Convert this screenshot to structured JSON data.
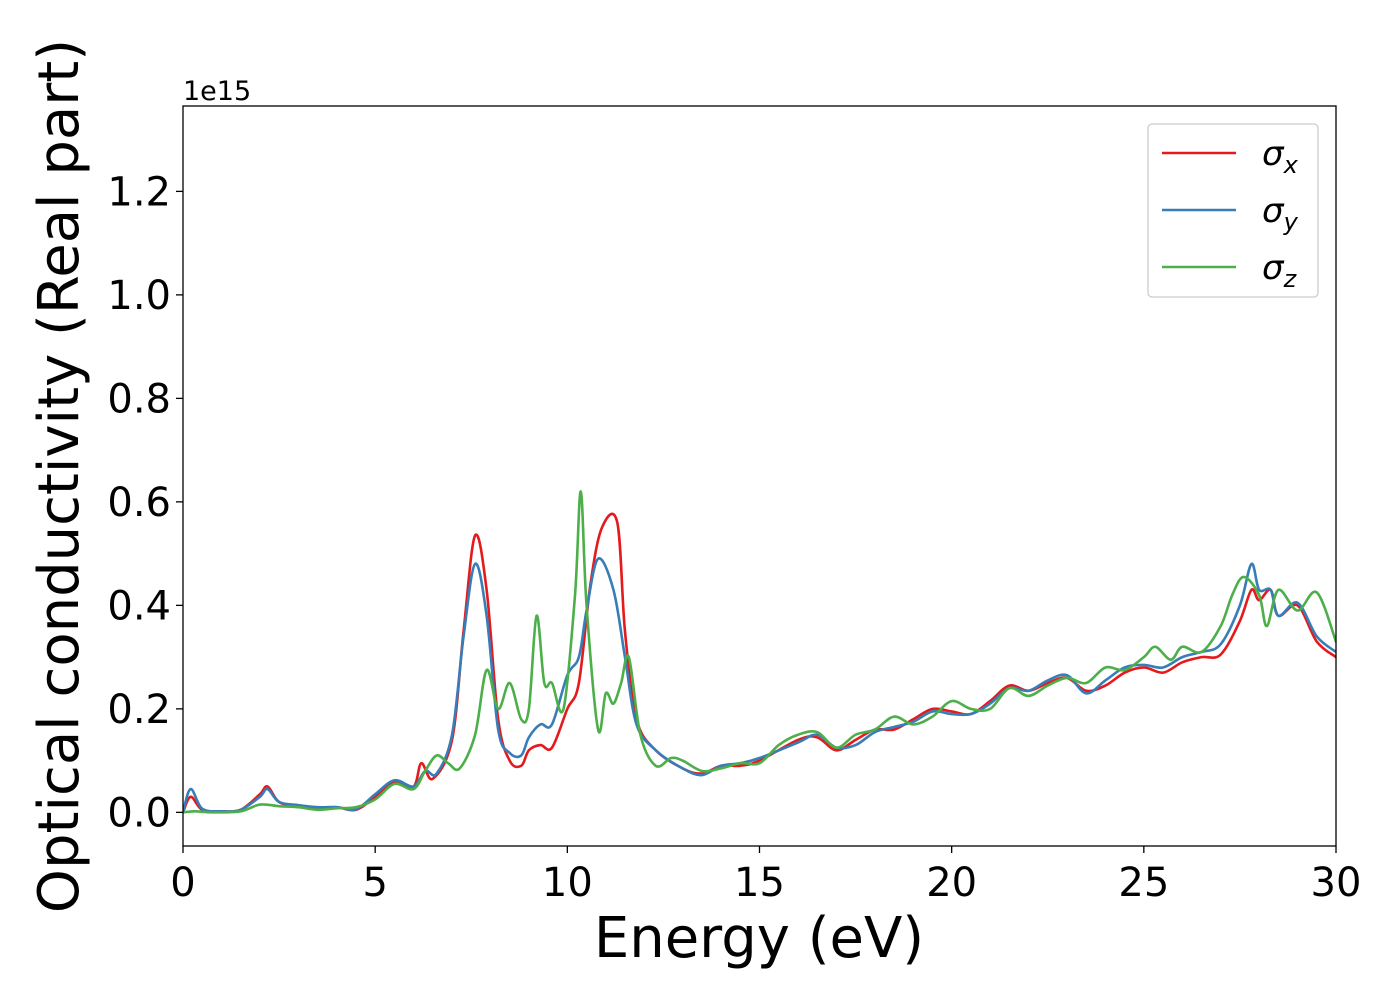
{
  "chart_data": {
    "type": "line",
    "title": "",
    "xlabel": "Energy (eV)",
    "ylabel": "Optical conductivity (Real part)",
    "y_offset_label": "1e15",
    "xlim": [
      0,
      30
    ],
    "ylim": [
      -0.065,
      1.365
    ],
    "xticks": [
      0,
      5,
      10,
      15,
      20,
      25,
      30
    ],
    "xtick_labels": [
      "0",
      "5",
      "10",
      "15",
      "20",
      "25",
      "30"
    ],
    "yticks": [
      0.0,
      0.2,
      0.4,
      0.6,
      0.8,
      1.0,
      1.2
    ],
    "ytick_labels": [
      "0.0",
      "0.2",
      "0.4",
      "0.6",
      "0.8",
      "1.0",
      "1.2"
    ],
    "grid": false,
    "legend_position": "top-right",
    "series": [
      {
        "name": "σx",
        "symbol": "σ",
        "subscript": "x",
        "color": "#e41a1c",
        "x": [
          0,
          0.2,
          0.5,
          1,
          1.5,
          2,
          2.2,
          2.5,
          3,
          3.5,
          4,
          4.5,
          5,
          5.5,
          6,
          6.2,
          6.5,
          7,
          7.3,
          7.6,
          7.9,
          8.2,
          8.5,
          8.8,
          9,
          9.3,
          9.6,
          10,
          10.3,
          10.6,
          10.9,
          11.3,
          11.5,
          11.8,
          12.3,
          13,
          13.5,
          14,
          14.5,
          15,
          16,
          16.5,
          17,
          17.5,
          18,
          18.5,
          19,
          19.5,
          20,
          20.5,
          21,
          21.5,
          22,
          22.5,
          23,
          23.5,
          24,
          24.5,
          25,
          25.5,
          26,
          26.5,
          27,
          27.5,
          27.8,
          28,
          28.3,
          28.5,
          29,
          29.5,
          30
        ],
        "values": [
          0.0,
          0.03,
          0.005,
          0.002,
          0.005,
          0.035,
          0.05,
          0.02,
          0.012,
          0.008,
          0.01,
          0.005,
          0.03,
          0.06,
          0.05,
          0.095,
          0.065,
          0.14,
          0.35,
          0.535,
          0.43,
          0.18,
          0.1,
          0.09,
          0.12,
          0.13,
          0.125,
          0.2,
          0.25,
          0.44,
          0.55,
          0.56,
          0.35,
          0.18,
          0.12,
          0.085,
          0.075,
          0.09,
          0.09,
          0.1,
          0.14,
          0.145,
          0.12,
          0.14,
          0.16,
          0.16,
          0.18,
          0.2,
          0.195,
          0.19,
          0.215,
          0.245,
          0.235,
          0.25,
          0.26,
          0.235,
          0.245,
          0.27,
          0.28,
          0.27,
          0.29,
          0.3,
          0.305,
          0.37,
          0.43,
          0.41,
          0.43,
          0.38,
          0.4,
          0.33,
          0.3
        ]
      },
      {
        "name": "σy",
        "symbol": "σ",
        "subscript": "y",
        "color": "#377eb8",
        "x": [
          0,
          0.2,
          0.5,
          1,
          1.5,
          2,
          2.2,
          2.5,
          3,
          3.5,
          4,
          4.5,
          5,
          5.5,
          6,
          6.3,
          6.6,
          7,
          7.3,
          7.6,
          7.9,
          8.2,
          8.5,
          8.8,
          9,
          9.3,
          9.6,
          10,
          10.3,
          10.5,
          10.8,
          11.2,
          11.5,
          11.8,
          12.3,
          13,
          13.5,
          14,
          14.5,
          15,
          16,
          16.5,
          17,
          17.5,
          18,
          18.5,
          19,
          19.5,
          20,
          20.5,
          21,
          21.5,
          22,
          22.5,
          23,
          23.5,
          24,
          24.5,
          25,
          25.5,
          26,
          26.5,
          27,
          27.5,
          27.8,
          28,
          28.3,
          28.5,
          29,
          29.5,
          30
        ],
        "values": [
          0.0,
          0.045,
          0.007,
          0.002,
          0.005,
          0.03,
          0.045,
          0.02,
          0.014,
          0.01,
          0.01,
          0.006,
          0.035,
          0.062,
          0.05,
          0.08,
          0.075,
          0.15,
          0.34,
          0.48,
          0.38,
          0.16,
          0.115,
          0.11,
          0.145,
          0.17,
          0.17,
          0.265,
          0.3,
          0.39,
          0.49,
          0.43,
          0.3,
          0.17,
          0.12,
          0.085,
          0.072,
          0.09,
          0.095,
          0.105,
          0.135,
          0.15,
          0.125,
          0.13,
          0.155,
          0.165,
          0.175,
          0.195,
          0.19,
          0.19,
          0.21,
          0.24,
          0.235,
          0.255,
          0.265,
          0.23,
          0.255,
          0.28,
          0.285,
          0.28,
          0.3,
          0.31,
          0.325,
          0.4,
          0.48,
          0.43,
          0.43,
          0.38,
          0.405,
          0.34,
          0.31
        ]
      },
      {
        "name": "σz",
        "symbol": "σ",
        "subscript": "z",
        "color": "#4daf4a",
        "x": [
          0,
          0.3,
          0.8,
          1.5,
          2,
          2.5,
          3,
          3.5,
          4,
          4.5,
          5,
          5.5,
          6,
          6.3,
          6.6,
          6.9,
          7.2,
          7.6,
          7.9,
          8.2,
          8.5,
          8.8,
          9,
          9.2,
          9.4,
          9.6,
          9.9,
          10.2,
          10.35,
          10.5,
          10.8,
          11,
          11.2,
          11.4,
          11.6,
          11.9,
          12.3,
          12.7,
          13,
          13.5,
          14,
          14.5,
          15,
          15.5,
          16,
          16.5,
          17,
          17.5,
          18,
          18.5,
          19,
          19.5,
          20,
          20.5,
          21,
          21.5,
          22,
          22.5,
          23,
          23.5,
          24,
          24.5,
          25,
          25.3,
          25.7,
          26,
          26.5,
          27,
          27.3,
          27.6,
          28,
          28.2,
          28.5,
          29,
          29.5,
          30
        ],
        "values": [
          0.0,
          0.002,
          0.0,
          0.002,
          0.015,
          0.012,
          0.01,
          0.005,
          0.008,
          0.01,
          0.025,
          0.055,
          0.045,
          0.08,
          0.11,
          0.095,
          0.085,
          0.15,
          0.275,
          0.2,
          0.25,
          0.18,
          0.2,
          0.38,
          0.25,
          0.25,
          0.2,
          0.42,
          0.62,
          0.4,
          0.16,
          0.23,
          0.21,
          0.25,
          0.3,
          0.15,
          0.09,
          0.105,
          0.1,
          0.08,
          0.085,
          0.095,
          0.095,
          0.13,
          0.15,
          0.155,
          0.125,
          0.15,
          0.16,
          0.185,
          0.17,
          0.185,
          0.215,
          0.2,
          0.2,
          0.24,
          0.225,
          0.245,
          0.26,
          0.25,
          0.28,
          0.275,
          0.3,
          0.32,
          0.295,
          0.32,
          0.31,
          0.36,
          0.42,
          0.455,
          0.42,
          0.36,
          0.43,
          0.39,
          0.425,
          0.33
        ]
      }
    ]
  }
}
